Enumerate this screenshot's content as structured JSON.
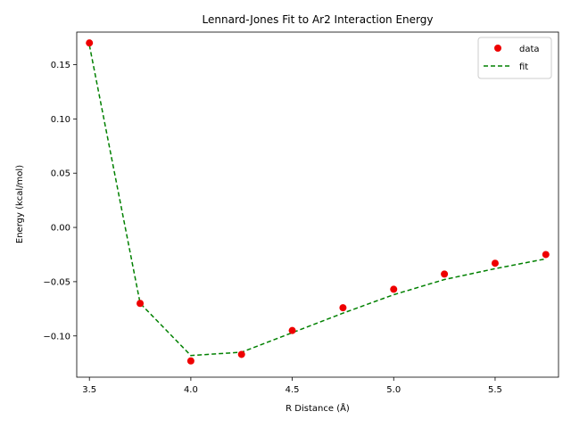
{
  "chart_data": {
    "type": "line",
    "title": "Lennard-Jones Fit to Ar2 Interaction Energy",
    "xlabel": "R Distance (Å)",
    "ylabel": "Energy (kcal/mol)",
    "xlim": [
      3.4375,
      5.8125
    ],
    "ylim": [
      -0.138,
      0.18
    ],
    "xticks": [
      3.5,
      4.0,
      4.5,
      5.0,
      5.5
    ],
    "xtick_labels": [
      "3.5",
      "4.0",
      "4.5",
      "5.0",
      "5.5"
    ],
    "yticks": [
      -0.1,
      -0.05,
      0.0,
      0.05,
      0.1,
      0.15
    ],
    "ytick_labels": [
      "−0.10",
      "−0.05",
      "0.00",
      "0.05",
      "0.10",
      "0.15"
    ],
    "grid": false,
    "legend_position": "top-right",
    "series": [
      {
        "name": "data",
        "style": "markers",
        "color": "#ee0000",
        "x": [
          3.5,
          3.75,
          4.0,
          4.25,
          4.5,
          4.75,
          5.0,
          5.25,
          5.5,
          5.75
        ],
        "y": [
          0.17,
          -0.07,
          -0.123,
          -0.117,
          -0.095,
          -0.074,
          -0.057,
          -0.043,
          -0.033,
          -0.025
        ]
      },
      {
        "name": "fit",
        "style": "dashed",
        "color": "#008000",
        "x": [
          3.5,
          3.75,
          4.0,
          4.25,
          4.5,
          4.75,
          5.0,
          5.25,
          5.5,
          5.75
        ],
        "y": [
          0.168,
          -0.07,
          -0.118,
          -0.115,
          -0.097,
          -0.079,
          -0.062,
          -0.048,
          -0.038,
          -0.029
        ]
      }
    ]
  }
}
